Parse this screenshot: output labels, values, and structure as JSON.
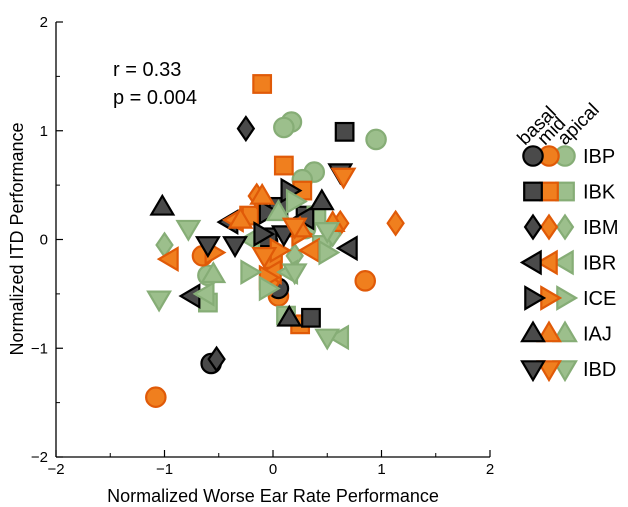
{
  "chart_data": {
    "type": "scatter",
    "xlabel": "Normalized Worse Ear Rate Performance",
    "ylabel": "Normalized ITD Performance",
    "xlim": [
      -2,
      2
    ],
    "ylim": [
      -2,
      2
    ],
    "x_ticks": [
      -2,
      -1,
      0,
      1,
      2
    ],
    "y_ticks": [
      -2,
      -1,
      0,
      1,
      2
    ],
    "x_tick_labels": [
      "−2",
      "−1",
      "0",
      "1",
      "2"
    ],
    "y_tick_labels": [
      "−2",
      "−1",
      "0",
      "1",
      "2"
    ],
    "grid": false,
    "annotations": {
      "r": "r  = 0.33",
      "p": "p = 0.004"
    },
    "region_header": [
      "basal",
      "mid",
      "apical"
    ],
    "region_colors": {
      "basal": "#4a4a4a",
      "mid": "#f07f1e",
      "apical": "#9cbf8c"
    },
    "legend_position": "right",
    "legend": [
      {
        "subject": "IBP",
        "marker": "circle"
      },
      {
        "subject": "IBK",
        "marker": "square"
      },
      {
        "subject": "IBM",
        "marker": "diamond"
      },
      {
        "subject": "IBR",
        "marker": "triangle-left"
      },
      {
        "subject": "ICE",
        "marker": "triangle-right"
      },
      {
        "subject": "IAJ",
        "marker": "triangle-up"
      },
      {
        "subject": "IBD",
        "marker": "triangle-down"
      }
    ],
    "points": [
      {
        "x": 0.17,
        "y": 1.08,
        "marker": "circle",
        "region": "apical"
      },
      {
        "x": 0.1,
        "y": 1.03,
        "marker": "circle",
        "region": "apical"
      },
      {
        "x": 0.95,
        "y": 0.92,
        "marker": "circle",
        "region": "apical"
      },
      {
        "x": 0.38,
        "y": 0.62,
        "marker": "circle",
        "region": "apical"
      },
      {
        "x": 0.27,
        "y": 0.55,
        "marker": "circle",
        "region": "apical"
      },
      {
        "x": -0.6,
        "y": -0.33,
        "marker": "circle",
        "region": "apical"
      },
      {
        "x": 0.3,
        "y": 0.1,
        "marker": "circle",
        "region": "apical"
      },
      {
        "x": -0.65,
        "y": -0.15,
        "marker": "circle",
        "region": "mid"
      },
      {
        "x": 0.85,
        "y": -0.38,
        "marker": "circle",
        "region": "mid"
      },
      {
        "x": -1.08,
        "y": -1.45,
        "marker": "circle",
        "region": "mid"
      },
      {
        "x": 0.05,
        "y": -0.52,
        "marker": "circle",
        "region": "mid"
      },
      {
        "x": -0.57,
        "y": -1.14,
        "marker": "circle",
        "region": "basal"
      },
      {
        "x": 0.05,
        "y": -0.45,
        "marker": "circle",
        "region": "basal"
      },
      {
        "x": -0.05,
        "y": -0.02,
        "marker": "circle",
        "region": "basal"
      },
      {
        "x": -0.1,
        "y": 1.43,
        "marker": "square",
        "region": "mid"
      },
      {
        "x": 0.1,
        "y": 0.68,
        "marker": "square",
        "region": "mid"
      },
      {
        "x": -0.22,
        "y": 0.22,
        "marker": "square",
        "region": "mid"
      },
      {
        "x": 0.27,
        "y": 0.45,
        "marker": "square",
        "region": "mid"
      },
      {
        "x": 0.25,
        "y": -0.78,
        "marker": "square",
        "region": "mid"
      },
      {
        "x": 0.0,
        "y": -0.18,
        "marker": "square",
        "region": "mid"
      },
      {
        "x": 0.66,
        "y": 0.99,
        "marker": "square",
        "region": "basal"
      },
      {
        "x": 0.35,
        "y": -0.72,
        "marker": "square",
        "region": "basal"
      },
      {
        "x": 0.3,
        "y": 0.22,
        "marker": "square",
        "region": "basal"
      },
      {
        "x": -0.05,
        "y": 0.02,
        "marker": "square",
        "region": "basal"
      },
      {
        "x": 0.05,
        "y": 0.3,
        "marker": "square",
        "region": "basal"
      },
      {
        "x": -0.6,
        "y": -0.58,
        "marker": "square",
        "region": "apical"
      },
      {
        "x": 0.12,
        "y": -0.7,
        "marker": "square",
        "region": "apical"
      },
      {
        "x": 0.4,
        "y": 0.22,
        "marker": "square",
        "region": "apical"
      },
      {
        "x": 0.45,
        "y": -0.05,
        "marker": "square",
        "region": "apical"
      },
      {
        "x": -0.25,
        "y": 1.02,
        "marker": "diamond",
        "region": "basal"
      },
      {
        "x": -0.52,
        "y": -1.1,
        "marker": "diamond",
        "region": "basal"
      },
      {
        "x": 1.13,
        "y": 0.15,
        "marker": "diamond",
        "region": "mid"
      },
      {
        "x": -0.15,
        "y": 0.4,
        "marker": "diamond",
        "region": "mid"
      },
      {
        "x": 0.62,
        "y": 0.15,
        "marker": "diamond",
        "region": "mid"
      },
      {
        "x": -0.02,
        "y": -0.4,
        "marker": "diamond",
        "region": "mid"
      },
      {
        "x": -1.0,
        "y": -0.05,
        "marker": "diamond",
        "region": "apical"
      },
      {
        "x": 0.55,
        "y": 0.05,
        "marker": "diamond",
        "region": "apical"
      },
      {
        "x": 0.2,
        "y": -0.15,
        "marker": "diamond",
        "region": "apical"
      },
      {
        "x": -0.75,
        "y": -0.52,
        "marker": "triangle-left",
        "region": "basal"
      },
      {
        "x": -0.4,
        "y": 0.16,
        "marker": "triangle-left",
        "region": "basal"
      },
      {
        "x": 0.3,
        "y": 0.2,
        "marker": "triangle-left",
        "region": "basal"
      },
      {
        "x": 0.7,
        "y": -0.08,
        "marker": "triangle-left",
        "region": "basal"
      },
      {
        "x": -0.95,
        "y": -0.18,
        "marker": "triangle-left",
        "region": "mid"
      },
      {
        "x": 0.0,
        "y": -0.3,
        "marker": "triangle-left",
        "region": "mid"
      },
      {
        "x": 0.35,
        "y": -0.1,
        "marker": "triangle-left",
        "region": "mid"
      },
      {
        "x": -0.35,
        "y": 0.18,
        "marker": "triangle-left",
        "region": "mid"
      },
      {
        "x": -0.62,
        "y": -0.5,
        "marker": "triangle-left",
        "region": "apical"
      },
      {
        "x": 0.62,
        "y": -0.9,
        "marker": "triangle-left",
        "region": "apical"
      },
      {
        "x": -0.2,
        "y": 0.0,
        "marker": "triangle-left",
        "region": "apical"
      },
      {
        "x": 0.15,
        "y": -0.3,
        "marker": "triangle-left",
        "region": "apical"
      },
      {
        "x": 0.15,
        "y": 0.45,
        "marker": "triangle-right",
        "region": "basal"
      },
      {
        "x": -0.05,
        "y": 0.25,
        "marker": "triangle-right",
        "region": "basal"
      },
      {
        "x": -0.1,
        "y": 0.05,
        "marker": "triangle-right",
        "region": "basal"
      },
      {
        "x": -0.55,
        "y": -0.12,
        "marker": "triangle-right",
        "region": "mid"
      },
      {
        "x": -0.05,
        "y": -0.35,
        "marker": "triangle-right",
        "region": "mid"
      },
      {
        "x": 0.25,
        "y": 0.05,
        "marker": "triangle-right",
        "region": "mid"
      },
      {
        "x": 0.05,
        "y": -0.1,
        "marker": "triangle-right",
        "region": "mid"
      },
      {
        "x": -0.22,
        "y": -0.3,
        "marker": "triangle-right",
        "region": "apical"
      },
      {
        "x": 0.5,
        "y": -0.12,
        "marker": "triangle-right",
        "region": "apical"
      },
      {
        "x": 0.2,
        "y": 0.35,
        "marker": "triangle-right",
        "region": "apical"
      },
      {
        "x": -0.05,
        "y": -0.45,
        "marker": "triangle-right",
        "region": "apical"
      },
      {
        "x": -1.02,
        "y": 0.3,
        "marker": "triangle-up",
        "region": "basal"
      },
      {
        "x": 0.15,
        "y": -0.72,
        "marker": "triangle-up",
        "region": "basal"
      },
      {
        "x": 0.45,
        "y": 0.35,
        "marker": "triangle-up",
        "region": "basal"
      },
      {
        "x": -0.1,
        "y": 0.4,
        "marker": "triangle-up",
        "region": "mid"
      },
      {
        "x": 0.55,
        "y": 0.15,
        "marker": "triangle-up",
        "region": "mid"
      },
      {
        "x": -0.3,
        "y": 0.18,
        "marker": "triangle-up",
        "region": "mid"
      },
      {
        "x": 0.25,
        "y": 0.1,
        "marker": "triangle-up",
        "region": "mid"
      },
      {
        "x": -0.55,
        "y": -0.32,
        "marker": "triangle-up",
        "region": "apical"
      },
      {
        "x": 0.05,
        "y": 0.25,
        "marker": "triangle-up",
        "region": "apical"
      },
      {
        "x": 0.62,
        "y": 0.62,
        "marker": "triangle-down",
        "region": "basal"
      },
      {
        "x": -0.35,
        "y": -0.05,
        "marker": "triangle-down",
        "region": "basal"
      },
      {
        "x": 0.1,
        "y": 0.05,
        "marker": "triangle-down",
        "region": "basal"
      },
      {
        "x": -0.6,
        "y": -0.05,
        "marker": "triangle-down",
        "region": "basal"
      },
      {
        "x": 0.65,
        "y": 0.58,
        "marker": "triangle-down",
        "region": "mid"
      },
      {
        "x": -0.08,
        "y": -0.15,
        "marker": "triangle-down",
        "region": "mid"
      },
      {
        "x": 0.2,
        "y": 0.12,
        "marker": "triangle-down",
        "region": "mid"
      },
      {
        "x": -0.78,
        "y": 0.1,
        "marker": "triangle-down",
        "region": "apical"
      },
      {
        "x": -1.05,
        "y": -0.55,
        "marker": "triangle-down",
        "region": "apical"
      },
      {
        "x": 0.5,
        "y": -0.9,
        "marker": "triangle-down",
        "region": "apical"
      },
      {
        "x": 0.2,
        "y": -0.3,
        "marker": "triangle-down",
        "region": "apical"
      },
      {
        "x": 0.5,
        "y": 0.08,
        "marker": "triangle-down",
        "region": "apical"
      }
    ]
  }
}
